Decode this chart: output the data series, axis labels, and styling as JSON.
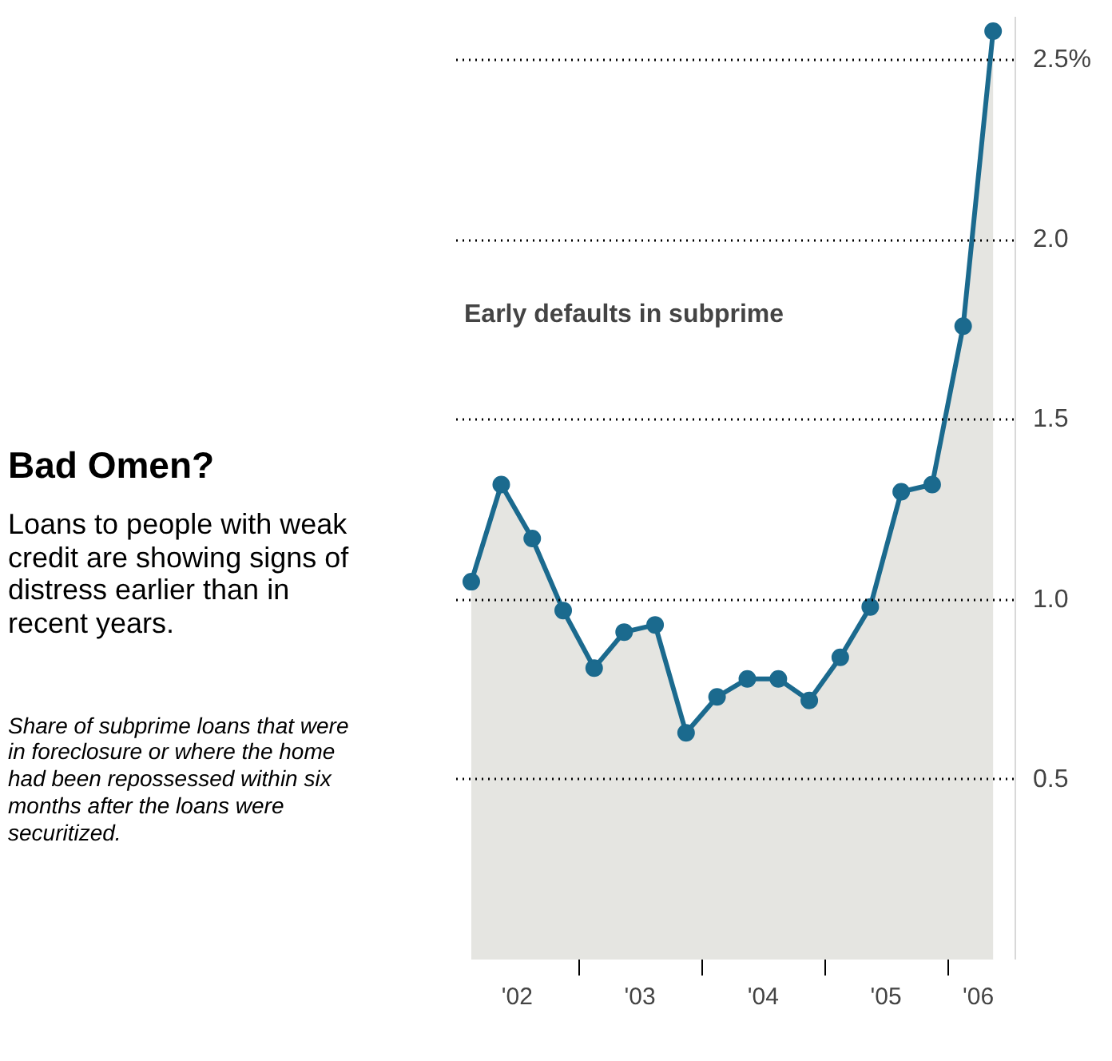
{
  "chart_data": {
    "type": "area",
    "title": "Bad Omen?",
    "subtitle": "Loans to people with weak credit are showing signs of distress earlier than in recent years.",
    "annotations": [
      "Early defaults in subprime",
      "Share of subprime loans that were in foreclosure or where the home had been repossessed within six months after the loans were securitized."
    ],
    "x": [
      "2002-02-15",
      "2002-05-15",
      "2002-08-15",
      "2002-11-15",
      "2003-02-15",
      "2003-05-15",
      "2003-08-15",
      "2003-11-15",
      "2004-02-15",
      "2004-05-15",
      "2004-08-15",
      "2004-11-15",
      "2005-02-15",
      "2005-05-15",
      "2005-08-15",
      "2005-11-15",
      "2006-02-15",
      "2006-05-15"
    ],
    "series": [
      {
        "color": "#1b6a8e",
        "values": [
          1.05,
          1.32,
          1.17,
          0.97,
          0.81,
          0.91,
          0.93,
          0.63,
          0.73,
          0.78,
          0.78,
          0.72,
          0.84,
          0.98,
          1.3,
          1.32,
          1.76,
          2.58
        ]
      }
    ],
    "xlim": [
      "2002-01-01",
      "2006-07-20"
    ],
    "xticks": [
      {
        "value": "2002-07-01",
        "label": "'02"
      },
      {
        "value": "2003-01-01",
        "label": null
      },
      {
        "value": "2003-07-01",
        "label": "'03"
      },
      {
        "value": "2004-01-01",
        "label": null
      },
      {
        "value": "2004-07-01",
        "label": "'04"
      },
      {
        "value": "2005-01-01",
        "label": null
      },
      {
        "value": "2005-07-01",
        "label": "'05"
      },
      {
        "value": "2006-01-01",
        "label": null
      },
      {
        "value": "2006-04-01",
        "label": "'06"
      }
    ],
    "ylim": [
      0,
      2.62
    ],
    "yticks": [
      0.5,
      {
        "value": 1.0,
        "label": "1.0"
      },
      1.5,
      {
        "value": 2.0,
        "label": "2.0"
      },
      {
        "value": 2.5,
        "label": "2.5%"
      }
    ],
    "grid": "y",
    "marker": "circle",
    "line_style": "solid"
  }
}
